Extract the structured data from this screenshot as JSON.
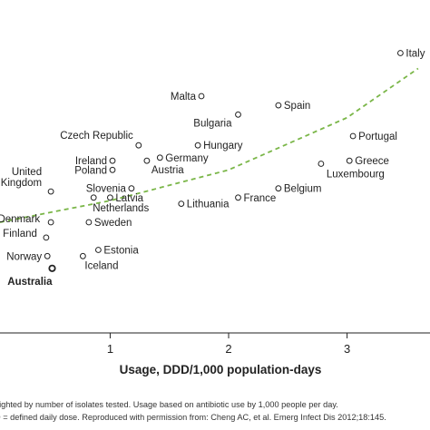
{
  "chart_data": {
    "type": "scatter",
    "xlabel": "Usage, DDD/1,000 population-days",
    "xticks": [
      1,
      2,
      3
    ],
    "xlim": [
      0.07,
      3.7
    ],
    "ylim": [
      0,
      100
    ],
    "highlight": "Australia",
    "points": [
      {
        "label": "Italy",
        "x": 3.45,
        "y": 91
      },
      {
        "label": "Malta",
        "x": 1.77,
        "y": 77
      },
      {
        "label": "Spain",
        "x": 2.42,
        "y": 74
      },
      {
        "label": "Bulgaria",
        "x": 2.08,
        "y": 71
      },
      {
        "label": "Portugal",
        "x": 3.05,
        "y": 64
      },
      {
        "label": "Czech Republic",
        "x": 1.24,
        "y": 61
      },
      {
        "label": "Hungary",
        "x": 1.74,
        "y": 61
      },
      {
        "label": "Germany",
        "x": 1.42,
        "y": 57
      },
      {
        "label": "Ireland",
        "x": 1.02,
        "y": 56
      },
      {
        "label": "Austria",
        "x": 1.31,
        "y": 56
      },
      {
        "label": "Poland",
        "x": 1.02,
        "y": 53
      },
      {
        "label": "Greece",
        "x": 3.02,
        "y": 56
      },
      {
        "label": "Luxembourg",
        "x": 2.78,
        "y": 55
      },
      {
        "label": "United Kingdom",
        "x": 0.5,
        "y": 46
      },
      {
        "label": "Slovenia",
        "x": 1.18,
        "y": 47
      },
      {
        "label": "Belgium",
        "x": 2.42,
        "y": 47
      },
      {
        "label": "France",
        "x": 2.08,
        "y": 44
      },
      {
        "label": "Latvia",
        "x": 1.0,
        "y": 44
      },
      {
        "label": "Netherlands",
        "x": 0.86,
        "y": 44
      },
      {
        "label": "Lithuania",
        "x": 1.6,
        "y": 42
      },
      {
        "label": "Denmark",
        "x": 0.5,
        "y": 36
      },
      {
        "label": "Sweden",
        "x": 0.82,
        "y": 36
      },
      {
        "label": "Finland",
        "x": 0.46,
        "y": 31
      },
      {
        "label": "Estonia",
        "x": 0.9,
        "y": 27
      },
      {
        "label": "Norway",
        "x": 0.47,
        "y": 25
      },
      {
        "label": "Iceland",
        "x": 0.77,
        "y": 25
      },
      {
        "label": "Australia",
        "x": 0.51,
        "y": 21
      }
    ],
    "trendline": {
      "style": "dashed",
      "color": "#7ab648",
      "points": [
        [
          0.07,
          36
        ],
        [
          1.0,
          43
        ],
        [
          2.0,
          53
        ],
        [
          3.0,
          70
        ],
        [
          3.6,
          86
        ]
      ]
    }
  },
  "footnote": {
    "line1": "eighted by number of isolates tested. Usage based on antibiotic use by 1,000 people per day.",
    "line2": "D = defined daily dose. Reproduced with permission from: Cheng AC, et al. Emerg Infect Dis 2012;18:145."
  }
}
